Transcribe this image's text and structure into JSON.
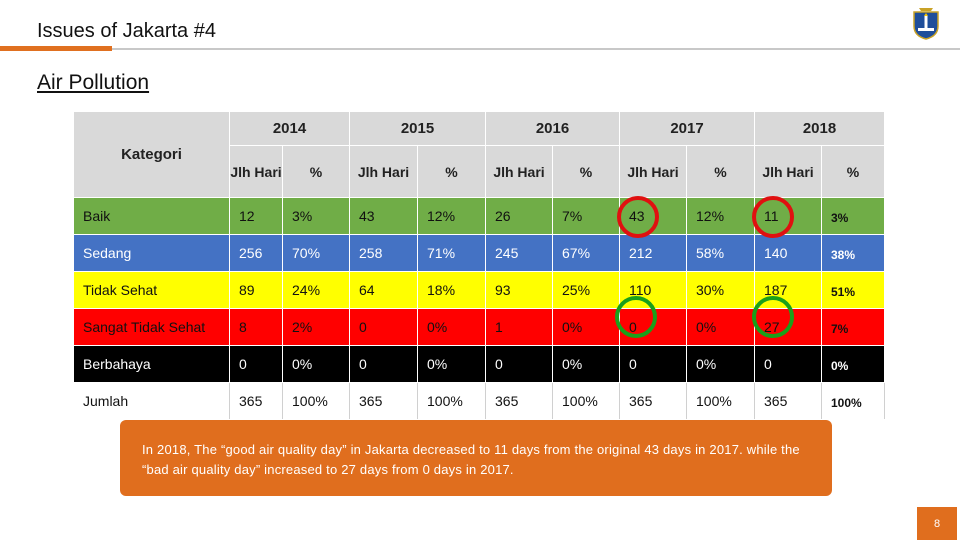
{
  "header": {
    "title": "Issues of Jakarta #4"
  },
  "section": {
    "heading": "Air Pollution"
  },
  "table": {
    "category_header": "Kategori",
    "years": [
      "2014",
      "2015",
      "2016",
      "2017",
      "2018"
    ],
    "sub_headers": {
      "days": "Jlh Hari",
      "pct": "%"
    },
    "rows": [
      {
        "label": "Baik",
        "cells": [
          "12",
          "3%",
          "43",
          "12%",
          "26",
          "7%",
          "43",
          "12%",
          "11",
          "3%"
        ]
      },
      {
        "label": "Sedang",
        "cells": [
          "256",
          "70%",
          "258",
          "71%",
          "245",
          "67%",
          "212",
          "58%",
          "140",
          "38%"
        ]
      },
      {
        "label": "Tidak Sehat",
        "cells": [
          "89",
          "24%",
          "64",
          "18%",
          "93",
          "25%",
          "110",
          "30%",
          "187",
          "51%"
        ]
      },
      {
        "label": "Sangat Tidak Sehat",
        "cells": [
          "8",
          "2%",
          "0",
          "0%",
          "1",
          "0%",
          "0",
          "0%",
          "27",
          "7%"
        ]
      },
      {
        "label": "Berbahaya",
        "cells": [
          "0",
          "0%",
          "0",
          "0%",
          "0",
          "0%",
          "0",
          "0%",
          "0",
          "0%"
        ]
      },
      {
        "label": "Jumlah",
        "cells": [
          "365",
          "100%",
          "365",
          "100%",
          "365",
          "100%",
          "365",
          "100%",
          "365",
          "100%"
        ]
      }
    ],
    "row_colors": [
      "#70ad47",
      "#4472c4",
      "#ffff00",
      "#ff0000",
      "#000000",
      "#ffffff"
    ]
  },
  "callout": {
    "text": "In 2018, The “good air quality day” in Jakarta decreased to 11 days from the original 43 days in 2017. while the “bad air quality day”  increased to 27 days from 0 days in 2017."
  },
  "footer": {
    "page_number": "8"
  },
  "colors": {
    "accent_orange": "#e06e1e",
    "highlight_red": "#e01010",
    "highlight_green": "#1aa01a"
  },
  "icons": {
    "logo": "jakarta-emblem-icon"
  }
}
